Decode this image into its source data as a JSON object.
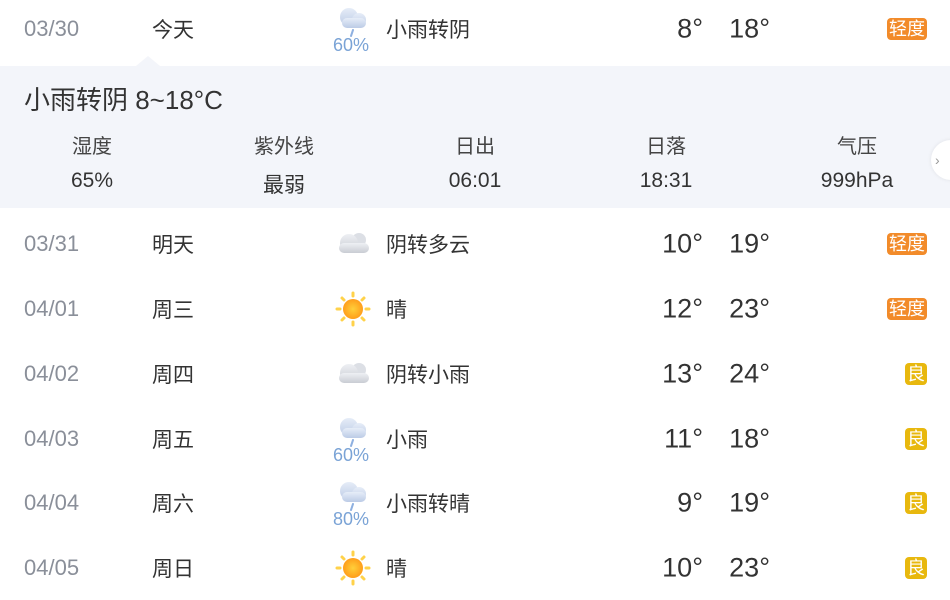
{
  "colors": {
    "light": "#f28b2a",
    "good": "#e8b80e",
    "panel_bg": "#f3f5fa"
  },
  "today": {
    "date": "03/30",
    "weekday": "今天",
    "icon": "light-rain-icon",
    "pop": "60%",
    "weather": "小雨转阴",
    "low": "8°",
    "high": "18°",
    "aqi": "轻度",
    "aqi_level": "light"
  },
  "detail": {
    "title": "小雨转阴 8~18°C",
    "stats": [
      {
        "label": "湿度",
        "value": "65%"
      },
      {
        "label": "紫外线",
        "value": "最弱"
      },
      {
        "label": "日出",
        "value": "06:01"
      },
      {
        "label": "日落",
        "value": "18:31"
      },
      {
        "label": "气压",
        "value": "999hPa"
      }
    ]
  },
  "days": [
    {
      "date": "03/31",
      "weekday": "明天",
      "icon": "cloudy-icon",
      "pop": "",
      "weather": "阴转多云",
      "low": "10°",
      "high": "19°",
      "aqi": "轻度",
      "aqi_level": "light"
    },
    {
      "date": "04/01",
      "weekday": "周三",
      "icon": "sunny-icon",
      "pop": "",
      "weather": "晴",
      "low": "12°",
      "high": "23°",
      "aqi": "轻度",
      "aqi_level": "light"
    },
    {
      "date": "04/02",
      "weekday": "周四",
      "icon": "cloudy-icon",
      "pop": "",
      "weather": "阴转小雨",
      "low": "13°",
      "high": "24°",
      "aqi": "良",
      "aqi_level": "good"
    },
    {
      "date": "04/03",
      "weekday": "周五",
      "icon": "light-rain-icon",
      "pop": "60%",
      "weather": "小雨",
      "low": "11°",
      "high": "18°",
      "aqi": "良",
      "aqi_level": "good"
    },
    {
      "date": "04/04",
      "weekday": "周六",
      "icon": "light-rain-icon",
      "pop": "80%",
      "weather": "小雨转晴",
      "low": "9°",
      "high": "19°",
      "aqi": "良",
      "aqi_level": "good"
    },
    {
      "date": "04/05",
      "weekday": "周日",
      "icon": "sunny-icon",
      "pop": "",
      "weather": "晴",
      "low": "10°",
      "high": "23°",
      "aqi": "良",
      "aqi_level": "good"
    }
  ]
}
